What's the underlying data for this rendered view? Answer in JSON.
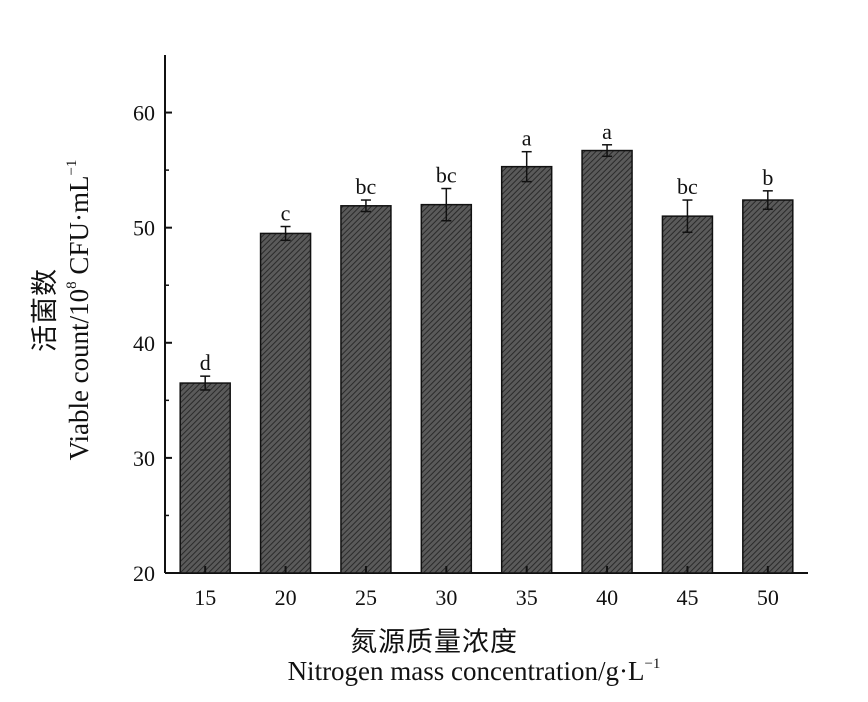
{
  "chart_data": {
    "type": "bar",
    "categories": [
      "15",
      "20",
      "25",
      "30",
      "35",
      "40",
      "45",
      "50"
    ],
    "values": [
      36.5,
      49.5,
      51.9,
      52.0,
      55.3,
      56.7,
      51.0,
      52.4
    ],
    "errors": [
      0.6,
      0.6,
      0.5,
      1.4,
      1.3,
      0.5,
      1.4,
      0.8
    ],
    "significance_letters": [
      "d",
      "c",
      "bc",
      "bc",
      "a",
      "a",
      "bc",
      "b"
    ],
    "ylim": [
      20,
      65
    ],
    "yticks": [
      "20",
      "30",
      "40",
      "50",
      "60"
    ],
    "ylabel_cn": "活菌数",
    "ylabel_en": "Viable count/10",
    "ylabel_exp": "8",
    "ylabel_unit": " CFU·mL",
    "ylabel_unit_exp": "−1",
    "xlabel_cn": "氮源质量浓度",
    "xlabel_en": "Nitrogen mass concentration/g·L",
    "xlabel_exp": "−1",
    "grid": false,
    "bar_fill": "#4a4a4a"
  }
}
